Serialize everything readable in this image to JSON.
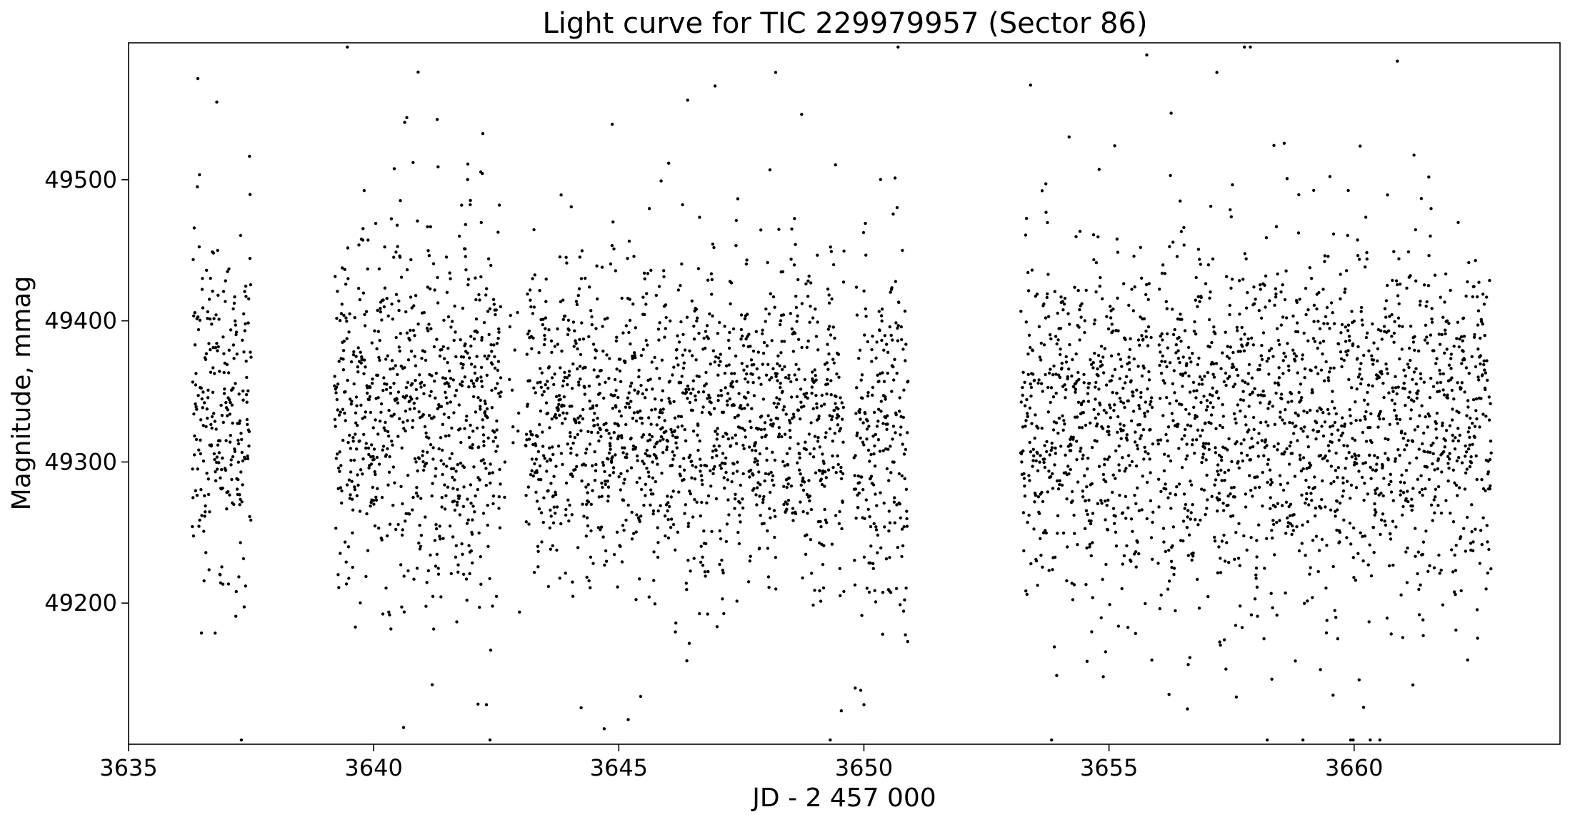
{
  "chart_data": {
    "type": "scatter",
    "title": "Light curve for TIC 229979957 (Sector 86)",
    "xlabel": "JD - 2 457 000",
    "ylabel": "Magnitude, mmag",
    "xlim": [
      3635,
      3664.2
    ],
    "ylim": [
      49100,
      49597
    ],
    "y_inverted": false,
    "grid": false,
    "legend": "none",
    "marker_color": "#000000",
    "xticks": [
      {
        "value": 3635,
        "label": "3635"
      },
      {
        "value": 3640,
        "label": "3640"
      },
      {
        "value": 3645,
        "label": "3645"
      },
      {
        "value": 3650,
        "label": "3650"
      },
      {
        "value": 3655,
        "label": "3655"
      },
      {
        "value": 3660,
        "label": "3660"
      }
    ],
    "yticks": [
      {
        "value": 49200,
        "label": "49200"
      },
      {
        "value": 49300,
        "label": "49300"
      },
      {
        "value": 49400,
        "label": "49400"
      },
      {
        "value": 49500,
        "label": "49500"
      }
    ],
    "data_segments": [
      {
        "x_start": 3636.3,
        "x_end": 3637.5,
        "mean": 49340,
        "spread": 55
      },
      {
        "x_start": 3639.2,
        "x_end": 3642.6,
        "mean": 49330,
        "spread": 60
      },
      {
        "x_start": 3643.1,
        "x_end": 3649.6,
        "mean": 49330,
        "spread": 50
      },
      {
        "x_start": 3649.8,
        "x_end": 3650.9,
        "mean": 49320,
        "spread": 60
      },
      {
        "x_start": 3653.2,
        "x_end": 3655.9,
        "mean": 49330,
        "spread": 60
      },
      {
        "x_start": 3656.0,
        "x_end": 3662.8,
        "mean": 49330,
        "spread": 58
      }
    ],
    "anchor_points": [
      {
        "x": 3648.2,
        "y": 49576
      },
      {
        "x": 3657.2,
        "y": 49576
      },
      {
        "x": 3636.8,
        "y": 49555
      },
      {
        "x": 3650.0,
        "y": 49128
      },
      {
        "x": 3642.3,
        "y": 49128
      },
      {
        "x": 3656.6,
        "y": 49125
      },
      {
        "x": 3661.2,
        "y": 49142
      },
      {
        "x": 3653.4,
        "y": 49567
      }
    ]
  }
}
